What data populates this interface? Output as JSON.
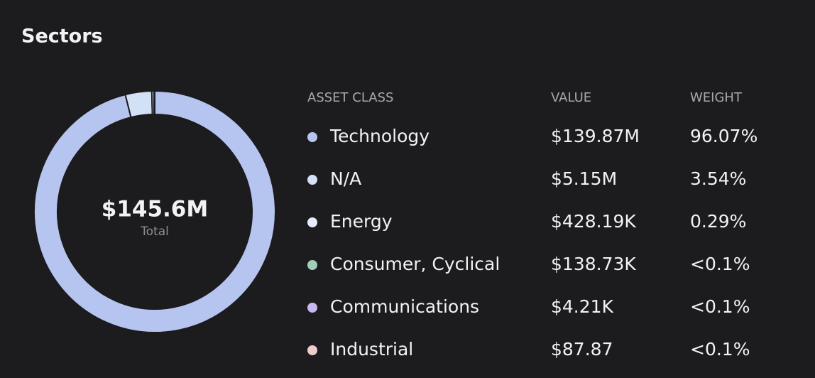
{
  "title": "Sectors",
  "chart_data": {
    "type": "donut",
    "total_label": "$145.6M",
    "total_caption": "Total",
    "categories": [
      "Technology",
      "N/A",
      "Energy",
      "Consumer, Cyclical",
      "Communications",
      "Industrial"
    ],
    "colors": [
      "#b6c4f0",
      "#d3e1f7",
      "#e6ecfa",
      "#9fcfb8",
      "#c7b8ef",
      "#f0cccc"
    ],
    "values": [
      139870000,
      5150000,
      428190,
      138730,
      4210,
      87.87
    ],
    "value_labels": [
      "$139.87M",
      "$5.15M",
      "$428.19K",
      "$138.73K",
      "$4.21K",
      "$87.87"
    ]
  },
  "table": {
    "headers": [
      "ASSET CLASS",
      "VALUE",
      "WEIGHT"
    ],
    "weights": [
      "96.07%",
      "3.54%",
      "0.29%",
      "<0.1%",
      "<0.1%",
      "<0.1%"
    ]
  }
}
